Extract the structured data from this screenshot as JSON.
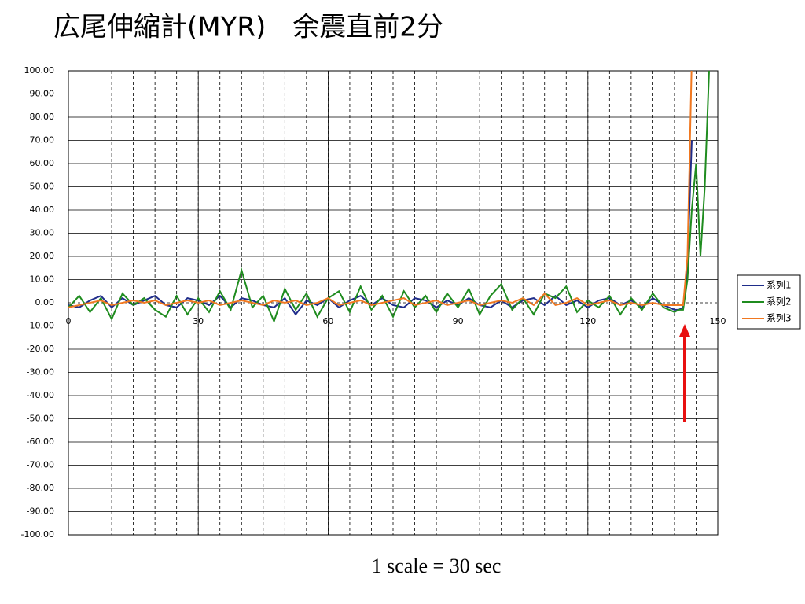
{
  "chart_data": {
    "type": "line",
    "title": "広尾伸縮計(MYR)　余震直前2分",
    "annotation": "1 scale = 30 sec",
    "x": [
      0,
      2.5,
      5,
      7.5,
      10,
      12.5,
      15,
      17.5,
      20,
      22.5,
      25,
      27.5,
      30,
      32.5,
      35,
      37.5,
      40,
      42.5,
      45,
      47.5,
      50,
      52.5,
      55,
      57.5,
      60,
      62.5,
      65,
      67.5,
      70,
      72.5,
      75,
      77.5,
      80,
      82.5,
      85,
      87.5,
      90,
      92.5,
      95,
      97.5,
      100,
      102.5,
      105,
      107.5,
      110,
      112.5,
      115,
      117.5,
      120,
      122.5,
      125,
      127.5,
      130,
      132.5,
      135,
      137.5,
      140,
      141,
      142,
      143,
      144,
      145,
      146,
      147,
      148
    ],
    "series": [
      {
        "name": "系列1",
        "color": "#1f2d8a",
        "values": [
          -1,
          -2,
          1,
          3,
          -2,
          2,
          -1,
          1,
          3,
          -1,
          -2,
          2,
          1,
          -1,
          3,
          -2,
          2,
          1,
          -1,
          -2,
          2,
          -5,
          1,
          -1,
          2,
          -2,
          1,
          3,
          -1,
          2,
          -1,
          -2,
          2,
          1,
          -2,
          1,
          -1,
          2,
          -1,
          -2,
          1,
          -2,
          1,
          2,
          -1,
          3,
          -1,
          1,
          -2,
          1,
          2,
          -1,
          1,
          -2,
          2,
          -1,
          -3,
          -3,
          -2,
          15,
          70,
          null,
          null,
          null,
          null
        ]
      },
      {
        "name": "系列2",
        "color": "#1f8c1f",
        "values": [
          -2,
          3,
          -4,
          2,
          -7,
          4,
          -1,
          2,
          -3,
          -6,
          3,
          -5,
          2,
          -4,
          5,
          -3,
          14,
          -2,
          3,
          -8,
          6,
          -3,
          4,
          -6,
          2,
          5,
          -4,
          7,
          -3,
          3,
          -6,
          5,
          -2,
          3,
          -4,
          4,
          -2,
          6,
          -5,
          3,
          8,
          -3,
          2,
          -5,
          4,
          2,
          7,
          -4,
          1,
          -2,
          3,
          -5,
          2,
          -3,
          4,
          -2,
          -4,
          -3,
          -3,
          10,
          40,
          60,
          20,
          50,
          100
        ]
      },
      {
        "name": "系列3",
        "color": "#f07820",
        "values": [
          -2,
          -1,
          0,
          1,
          -1,
          0,
          1,
          0,
          1,
          -1,
          0,
          1,
          0,
          1,
          -1,
          0,
          1,
          0,
          -1,
          1,
          0,
          1,
          -1,
          0,
          2,
          -1,
          0,
          1,
          -1,
          0,
          1,
          2,
          -1,
          0,
          1,
          -1,
          0,
          1,
          -1,
          0,
          1,
          0,
          2,
          -1,
          4,
          -1,
          0,
          2,
          -1,
          0,
          1,
          -1,
          0,
          -1,
          0,
          -1,
          -1,
          -1,
          -1,
          20,
          105,
          null,
          null,
          null,
          null
        ]
      }
    ],
    "xlim": [
      0,
      150
    ],
    "xticks": [
      0,
      30,
      60,
      90,
      120,
      150
    ],
    "ylim": [
      -100,
      100
    ],
    "yticks": [
      {
        "value": 100,
        "label": "100.00"
      },
      {
        "value": 90,
        "label": "90.00"
      },
      {
        "value": 80,
        "label": "80.00"
      },
      {
        "value": 70,
        "label": "70.00"
      },
      {
        "value": 60,
        "label": "60.00"
      },
      {
        "value": 50,
        "label": "50.00"
      },
      {
        "value": 40,
        "label": "40.00"
      },
      {
        "value": 30,
        "label": "30.00"
      },
      {
        "value": 20,
        "label": "20.00"
      },
      {
        "value": 10,
        "label": "10.00"
      },
      {
        "value": 0,
        "label": "0.00"
      },
      {
        "value": -10,
        "label": "-10.00"
      },
      {
        "value": -20,
        "label": "-20.00"
      },
      {
        "value": -30,
        "label": "-30.00"
      },
      {
        "value": -40,
        "label": "-40.00"
      },
      {
        "value": -50,
        "label": "-50.00"
      },
      {
        "value": -60,
        "label": "-60.00"
      },
      {
        "value": -70,
        "label": "-70.00"
      },
      {
        "value": -80,
        "label": "-80.00"
      },
      {
        "value": -90,
        "label": "-90.00"
      },
      {
        "value": -100,
        "label": "-100.00"
      }
    ],
    "grid": true,
    "legend": "right"
  }
}
